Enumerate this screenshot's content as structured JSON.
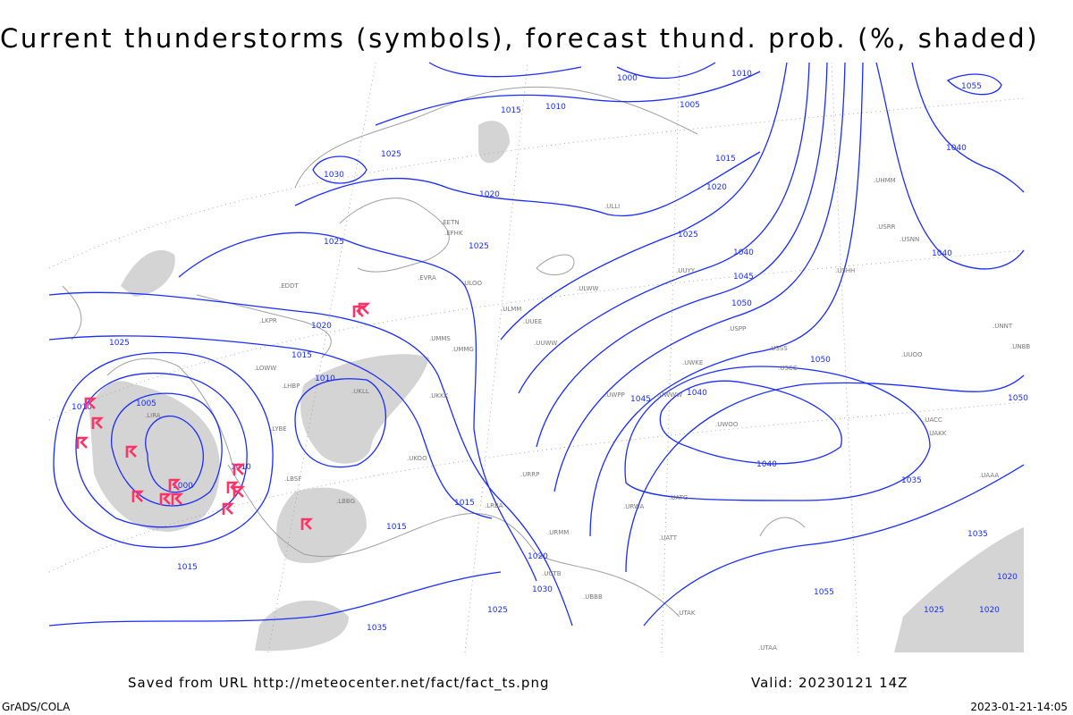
{
  "title": "Current thunderstorms (symbols), forecast thund. prob. (%, shaded)",
  "footer": {
    "saved": "Saved from URL http://meteocenter.net/fact/fact_ts.png",
    "valid": "Valid: 20230121 14Z",
    "software": "GrADS/COLA",
    "generated": "2023-01-21-14:05"
  },
  "colors": {
    "isobars": "#1a2cff",
    "coastlines": "#a0a0a0",
    "thunderstorm_symbols": "#ff3366",
    "probability_shading": "#d4d4d4"
  },
  "thunderstorm_symbol": "thunderstorm-icon",
  "isobar_labels": [
    "1000",
    "1010",
    "1005",
    "1015",
    "1010",
    "1030",
    "1025",
    "1020",
    "1025",
    "1025",
    "1020",
    "1015",
    "1025",
    "1020",
    "1015",
    "1010",
    "1005",
    "1010",
    "1000",
    "1010",
    "1015",
    "1015",
    "1015",
    "1020",
    "1025",
    "1030",
    "1035",
    "1040",
    "1045",
    "1050",
    "1050",
    "1045",
    "1040",
    "1040",
    "1035",
    "1050",
    "1055",
    "1055",
    "1040",
    "1040",
    "1035",
    "1020",
    "1025",
    "1020",
    "1025"
  ],
  "station_labels": [
    "EDDT",
    "LKPR",
    "LOWW",
    "LHBP",
    "LIRA",
    "LYBE",
    "LBSF",
    "LBBG",
    "LRBA",
    "UKKK",
    "UKLL",
    "UKOO",
    "UMMS",
    "UMMG",
    "UUEE",
    "UUWW",
    "UUYY",
    "ULLI",
    "ULOO",
    "EVRA",
    "EETN",
    "EFHK",
    "ULMM",
    "USSS",
    "USCC",
    "UWWW",
    "UWKE",
    "UWPP",
    "UATG",
    "URRP",
    "URWA",
    "UATT",
    "UACC",
    "UAAA",
    "UNNT",
    "UNBB",
    "USRR",
    "USNN",
    "UHMM",
    "UUOO",
    "UWOO",
    "UAKK",
    "URMM",
    "UGTB",
    "UBBB",
    "UTAA",
    "UTAK",
    "USHH",
    "USPP",
    "ULWW"
  ]
}
